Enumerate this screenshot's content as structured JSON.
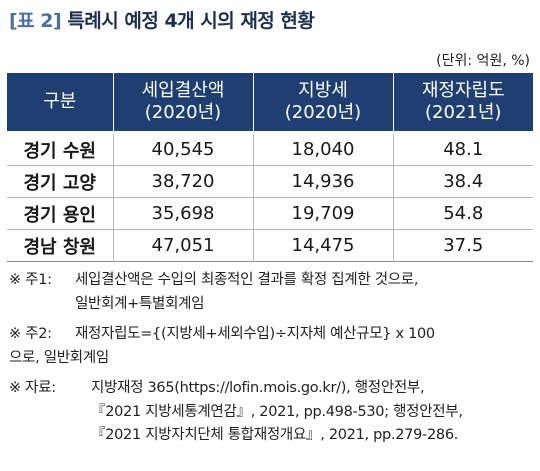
{
  "title": {
    "tag": "[표 2]",
    "text": "특례시 예정 4개 시의 재정 현황"
  },
  "unit": "(단위: 억원, %)",
  "table": {
    "headers": [
      {
        "line1": "구분",
        "line2": ""
      },
      {
        "line1": "세입결산액",
        "line2": "(2020년)"
      },
      {
        "line1": "지방세",
        "line2": "(2020년)"
      },
      {
        "line1": "재정자립도",
        "line2": "(2021년)"
      }
    ],
    "rows": [
      [
        "경기 수원",
        "40,545",
        "18,040",
        "48.1"
      ],
      [
        "경기 고양",
        "38,720",
        "14,936",
        "38.4"
      ],
      [
        "경기 용인",
        "35,698",
        "19,709",
        "54.8"
      ],
      [
        "경남 창원",
        "47,051",
        "14,475",
        "37.5"
      ]
    ]
  },
  "notes": [
    {
      "mark": "※ 주1:",
      "lines": [
        "세입결산액은 수입의 최종적인 결과를 확정 집계한 것으로,",
        "일반회계+특별회계임"
      ]
    },
    {
      "mark": "※ 주2:",
      "lines": [
        "재정자립도={(지방세+세외수입)÷지자체 예산규모} x 100",
        "으로, 일반회계임"
      ]
    },
    {
      "mark": "※  자료:",
      "lines": [
        "지방재정 365(https://lofin.mois.go.kr/),  행정안전부,",
        "『2021 지방세통계연감』, 2021, pp.498-530; 행정안전부,",
        "『2021 지방자치단체 통합재정개요』, 2021, pp.279-286."
      ]
    }
  ]
}
